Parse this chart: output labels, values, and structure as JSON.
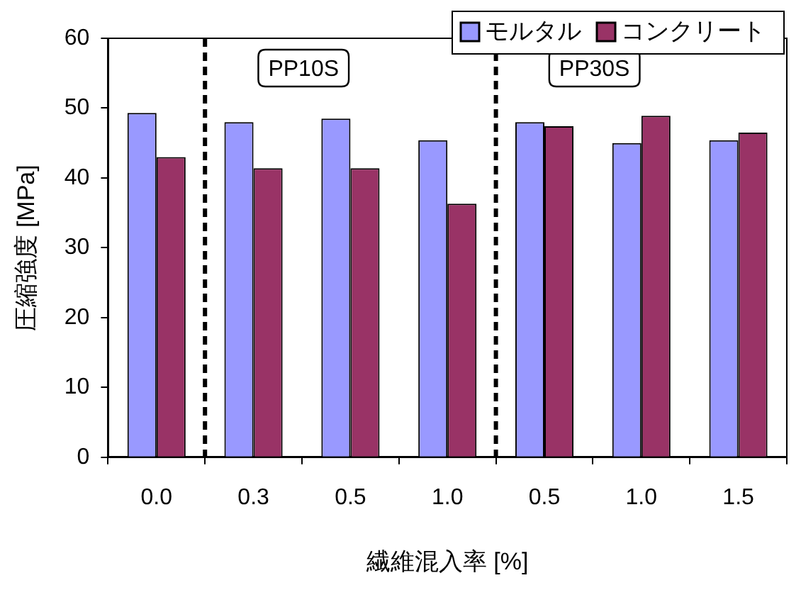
{
  "chart_data": {
    "type": "bar",
    "xlabel": "繊維混入率 [%]",
    "ylabel": "圧縮強度 [MPa]",
    "categories": [
      "0.0",
      "0.3",
      "0.5",
      "1.0",
      "0.5",
      "1.0",
      "1.5"
    ],
    "series": [
      {
        "name": "モルタル",
        "color": "#9999ff",
        "values": [
          49.3,
          48.0,
          48.5,
          45.4,
          48.0,
          45.0,
          45.4
        ]
      },
      {
        "name": "コンクリート",
        "color": "#993366",
        "values": [
          43.0,
          41.4,
          41.4,
          36.3,
          47.4,
          48.9,
          46.5
        ]
      }
    ],
    "ylim": [
      0,
      60
    ],
    "yticks": [
      0,
      10,
      20,
      30,
      40,
      50,
      60
    ],
    "grid": false,
    "legend": "top right",
    "annotations": [
      "PP10S",
      "PP30S"
    ]
  }
}
